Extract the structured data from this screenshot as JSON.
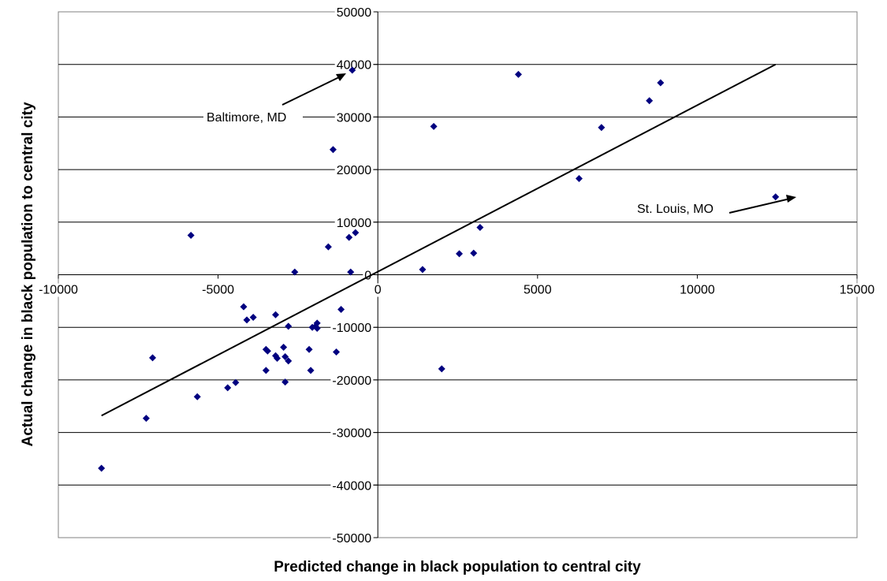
{
  "chart_data": {
    "type": "scatter",
    "title": "",
    "xlabel": "Predicted change in black population to central city",
    "ylabel": "Actual change in black population to central city",
    "xlim": [
      -10000,
      15000
    ],
    "ylim": [
      -50000,
      50000
    ],
    "x_ticks": [
      -10000,
      -5000,
      0,
      5000,
      10000,
      15000
    ],
    "y_ticks": [
      -50000,
      -40000,
      -30000,
      -20000,
      -10000,
      0,
      10000,
      20000,
      30000,
      40000,
      50000
    ],
    "grid": "horizontal",
    "legend": "none",
    "marker": "diamond",
    "marker_color": "#000080",
    "line_color": "#000000",
    "points": [
      {
        "x": -8650,
        "y": -36800
      },
      {
        "x": -7250,
        "y": -27300
      },
      {
        "x": -7050,
        "y": -15800
      },
      {
        "x": -5850,
        "y": 7500
      },
      {
        "x": -5650,
        "y": -23200
      },
      {
        "x": -4700,
        "y": -21500
      },
      {
        "x": -4450,
        "y": -20500
      },
      {
        "x": -4200,
        "y": -6100
      },
      {
        "x": -4100,
        "y": -8600
      },
      {
        "x": -3900,
        "y": -8100
      },
      {
        "x": -3500,
        "y": -14200
      },
      {
        "x": -3450,
        "y": -14500
      },
      {
        "x": -3500,
        "y": -18200
      },
      {
        "x": -3200,
        "y": -7600
      },
      {
        "x": -3200,
        "y": -15400
      },
      {
        "x": -3150,
        "y": -15900
      },
      {
        "x": -2950,
        "y": -13800
      },
      {
        "x": -2900,
        "y": -15600
      },
      {
        "x": -2900,
        "y": -20400
      },
      {
        "x": -2800,
        "y": -16400
      },
      {
        "x": -2800,
        "y": -9800
      },
      {
        "x": -2600,
        "y": 500
      },
      {
        "x": -2150,
        "y": -14200
      },
      {
        "x": -2100,
        "y": -18200
      },
      {
        "x": -2050,
        "y": -10000
      },
      {
        "x": -1950,
        "y": -9800
      },
      {
        "x": -1900,
        "y": -9200
      },
      {
        "x": -1900,
        "y": -10200
      },
      {
        "x": -1550,
        "y": 5300
      },
      {
        "x": -1400,
        "y": 23800
      },
      {
        "x": -1300,
        "y": -14700
      },
      {
        "x": -1150,
        "y": -6600
      },
      {
        "x": -900,
        "y": 7100
      },
      {
        "x": -850,
        "y": 500
      },
      {
        "x": -800,
        "y": 38900
      },
      {
        "x": -700,
        "y": 8000
      },
      {
        "x": 1400,
        "y": 1000
      },
      {
        "x": 1750,
        "y": 28200
      },
      {
        "x": 2000,
        "y": -17900
      },
      {
        "x": 2550,
        "y": 4000
      },
      {
        "x": 3000,
        "y": 4100
      },
      {
        "x": 3200,
        "y": 9000
      },
      {
        "x": 4400,
        "y": 38100
      },
      {
        "x": 6300,
        "y": 18300
      },
      {
        "x": 7000,
        "y": 28000
      },
      {
        "x": 8500,
        "y": 33100
      },
      {
        "x": 8850,
        "y": 36500
      },
      {
        "x": 12450,
        "y": 14800
      }
    ],
    "trendline": {
      "x": [
        -8650,
        12450
      ],
      "y": [
        -26800,
        40000
      ]
    },
    "annotations": [
      {
        "text": "Baltimore, MD",
        "point_x": -800,
        "point_y": 38900
      },
      {
        "text": "St. Louis, MO",
        "point_x": 12450,
        "point_y": 14800
      }
    ]
  }
}
